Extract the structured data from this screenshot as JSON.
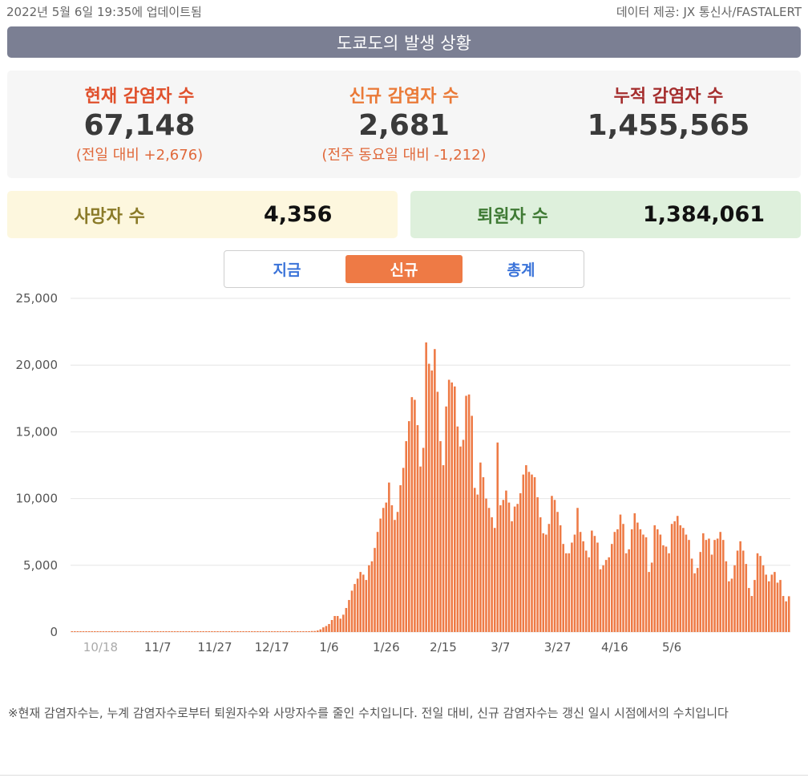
{
  "header": {
    "updated": "2022년 5월 6일 19:35에 업데이트됨",
    "source": "데이터 제공: JX 통신사/FASTALERT"
  },
  "title": "도쿄도의 발생 상황",
  "stats": {
    "current": {
      "label": "현재 감염자 수",
      "value": "67,148",
      "sub": "(전일 대비 +2,676)"
    },
    "new": {
      "label": "신규 감염자 수",
      "value": "2,681",
      "sub": "(전주 동요일 대비 -1,212)"
    },
    "cumulative": {
      "label": "누적 감염자 수",
      "value": "1,455,565"
    }
  },
  "deaths": {
    "label": "사망자 수",
    "value": "4,356"
  },
  "recovered": {
    "label": "퇴원자 수",
    "value": "1,384,061"
  },
  "tabs": [
    {
      "label": "지금",
      "active": false
    },
    {
      "label": "신규",
      "active": true
    },
    {
      "label": "총계",
      "active": false
    }
  ],
  "note": "※현재 감염자수는, 누계 감염자수로부터 퇴원자수와 사망자수를 줄인 수치입니다. 전일 대비, 신규 감염자수는 갱신 일시 시점에서의 수치입니다",
  "colors": {
    "bar": "#ee7a45",
    "grid": "#e6e6e6",
    "tab_active": "#ee7a45",
    "tab_text": "#3a73d9"
  },
  "chart_data": {
    "type": "bar",
    "title": "",
    "xlabel": "",
    "ylabel": "",
    "ylim": [
      0,
      25000
    ],
    "yticks": [
      "25,000",
      "20,000",
      "15,000",
      "10,000",
      "5,000",
      "0"
    ],
    "xticks": [
      "10/18",
      "11/7",
      "11/27",
      "12/17",
      "1/6",
      "1/26",
      "2/15",
      "3/7",
      "3/27",
      "4/16",
      "5/6"
    ],
    "x_start": "2021-10-08",
    "x_end": "2022-05-06",
    "grid": true,
    "values": [
      60,
      55,
      50,
      45,
      48,
      52,
      40,
      38,
      35,
      36,
      34,
      30,
      28,
      26,
      25,
      24,
      22,
      21,
      20,
      19,
      18,
      18,
      17,
      17,
      16,
      16,
      15,
      15,
      16,
      18,
      17,
      16,
      20,
      21,
      22,
      23,
      22,
      21,
      20,
      20,
      19,
      18,
      19,
      20,
      22,
      21,
      19,
      18,
      17,
      16,
      15,
      16,
      17,
      18,
      20,
      19,
      20,
      21,
      22,
      20,
      19,
      18,
      19,
      20,
      22,
      24,
      25,
      26,
      28,
      30,
      30,
      33,
      36,
      40,
      45,
      50,
      55,
      60,
      62,
      55,
      50,
      58,
      62,
      64,
      75,
      79,
      115,
      200,
      350,
      450,
      600,
      900,
      1200,
      1200,
      1000,
      1300,
      1800,
      2400,
      3100,
      3600,
      4000,
      4500,
      4300,
      3900,
      5000,
      5300,
      6300,
      7500,
      8500,
      9300,
      9700,
      11200,
      9500,
      8400,
      9000,
      11000,
      12300,
      14300,
      15800,
      17600,
      17400,
      15500,
      12400,
      13800,
      21700,
      20100,
      19600,
      21200,
      18000,
      14300,
      12500,
      16900,
      18900,
      18700,
      18400,
      15400,
      13900,
      14400,
      17700,
      17800,
      16200,
      10800,
      10300,
      12700,
      11600,
      10000,
      9300,
      8600,
      7800,
      14200,
      9500,
      9900,
      10600,
      9700,
      8300,
      9400,
      9600,
      10400,
      11800,
      12500,
      12000,
      11800,
      11600,
      10100,
      8600,
      7400,
      7300,
      8100,
      10200,
      9900,
      9000,
      8000,
      6600,
      5900,
      5900,
      6700,
      7300,
      9300,
      7500,
      6800,
      6100,
      5600,
      7600,
      7200,
      6700,
      4700,
      5000,
      5400,
      5600,
      6600,
      7500,
      7700,
      8800,
      8100,
      5900,
      6200,
      7700,
      8900,
      8200,
      7700,
      7300,
      7100,
      4500,
      5200,
      8000,
      7700,
      7300,
      6500,
      6400,
      5900,
      8100,
      8300,
      8700,
      8000,
      7800,
      7300,
      6900,
      5500,
      4400,
      4800,
      6000,
      7400,
      6900,
      7000,
      5800,
      6900,
      7000,
      7500,
      6900,
      5300,
      3800,
      4000,
      5000,
      6100,
      6800,
      6100,
      5100,
      3300,
      2700,
      3900,
      5900,
      5700,
      5000,
      4300,
      3800,
      4300,
      4500,
      3700,
      3900,
      2700,
      2300,
      2681
    ]
  }
}
